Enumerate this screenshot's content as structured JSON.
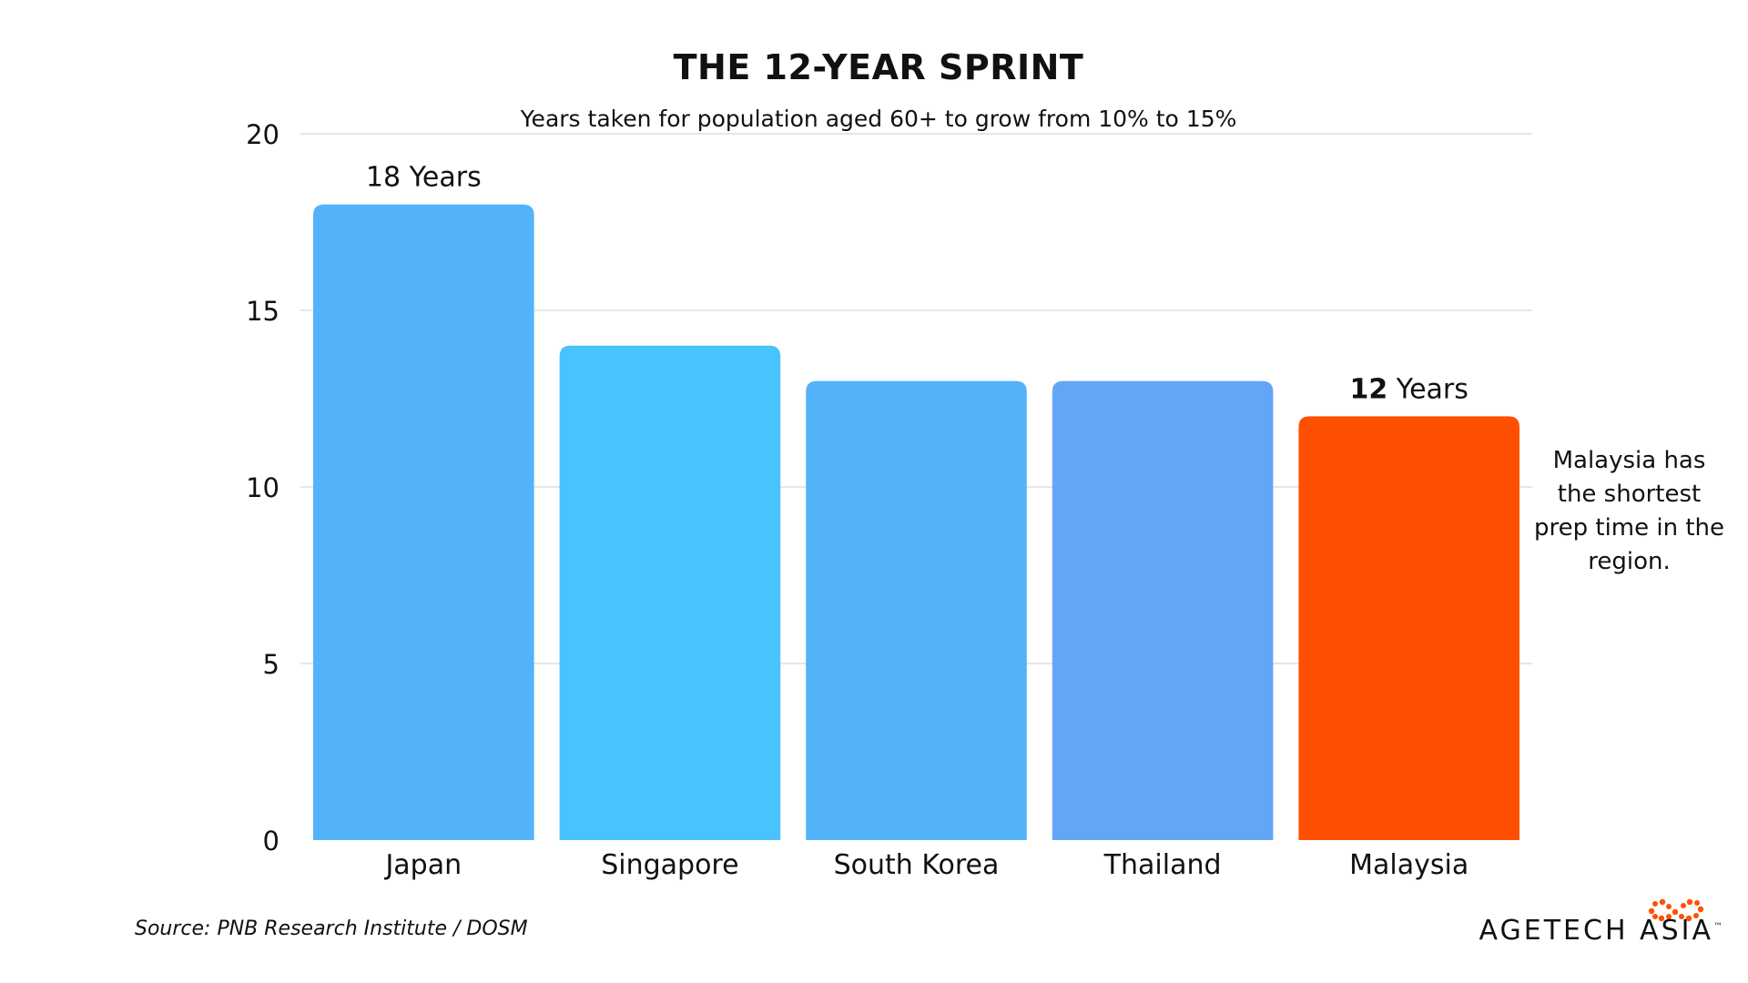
{
  "header": {
    "title": "THE 12-YEAR SPRINT",
    "subtitle": "Years taken for population aged 60+ to grow from 10% to 15%"
  },
  "chart_data": {
    "type": "bar",
    "title": "THE 12-YEAR SPRINT",
    "subtitle": "Years taken for population aged 60+ to grow from 10% to 15%",
    "categories": [
      "Japan",
      "Singapore",
      "South Korea",
      "Thailand",
      "Malaysia"
    ],
    "values": [
      18,
      14,
      13,
      13,
      12
    ],
    "colors": [
      "#52B3FA",
      "#48C3FD",
      "#52B3F9",
      "#63A6F8",
      "#FF5001"
    ],
    "data_labels": [
      {
        "category": "Japan",
        "bold": "18",
        "text": " Years",
        "bold_weight": "normal"
      },
      {
        "category": "Malaysia",
        "bold": "12",
        "text": " Years",
        "bold_weight": "bold"
      }
    ],
    "ylim": [
      0,
      20
    ],
    "yticks": [
      0,
      5,
      10,
      15,
      20
    ],
    "xlabel": "",
    "ylabel": "",
    "grid": true
  },
  "annotation": {
    "text": "Malaysia has the shortest prep time in the region."
  },
  "footer": {
    "source": "Source: PNB Research Institute / DOSM",
    "brand": "AGETECH ASIA",
    "brand_tm": "™",
    "brand_logo_icon": "infinity-dots-icon",
    "brand_color": "#FF5001"
  }
}
